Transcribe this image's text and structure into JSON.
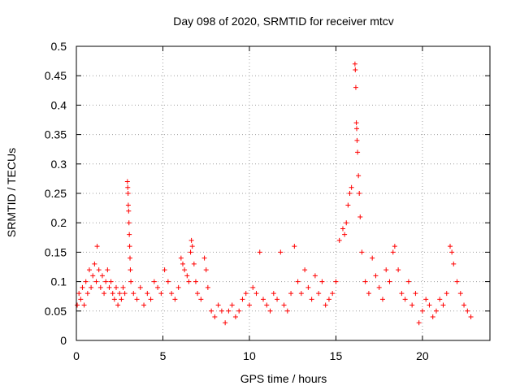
{
  "chart_data": {
    "type": "scatter",
    "title": "Day 098 of 2020, SRMTID for receiver mtcv",
    "xlabel": "GPS time / hours",
    "ylabel": "SRMTID / TECUs",
    "xlim": [
      0,
      23.9
    ],
    "ylim": [
      0,
      0.5
    ],
    "xticks": [
      0,
      5,
      10,
      15,
      20
    ],
    "xtick_labels": [
      "0",
      "5",
      "10",
      "15",
      "20"
    ],
    "yticks": [
      0,
      0.05,
      0.1,
      0.15,
      0.2,
      0.25,
      0.3,
      0.35,
      0.4,
      0.45,
      0.5
    ],
    "ytick_labels": [
      "0",
      "0.05",
      "0.1",
      "0.15",
      "0.2",
      "0.25",
      "0.3",
      "0.35",
      "0.4",
      "0.45",
      "0.5"
    ],
    "grid": true,
    "marker": "+",
    "series": [
      {
        "name": "SRMTID",
        "color": "#ff0000",
        "points": [
          [
            0.05,
            0.06
          ],
          [
            0.15,
            0.08
          ],
          [
            0.25,
            0.07
          ],
          [
            0.35,
            0.09
          ],
          [
            0.45,
            0.06
          ],
          [
            0.55,
            0.1
          ],
          [
            0.65,
            0.08
          ],
          [
            0.75,
            0.12
          ],
          [
            0.85,
            0.09
          ],
          [
            0.95,
            0.11
          ],
          [
            1.05,
            0.13
          ],
          [
            1.15,
            0.1
          ],
          [
            1.2,
            0.16
          ],
          [
            1.3,
            0.12
          ],
          [
            1.4,
            0.09
          ],
          [
            1.5,
            0.11
          ],
          [
            1.6,
            0.08
          ],
          [
            1.7,
            0.1
          ],
          [
            1.8,
            0.12
          ],
          [
            1.9,
            0.09
          ],
          [
            2.0,
            0.1
          ],
          [
            2.1,
            0.08
          ],
          [
            2.2,
            0.07
          ],
          [
            2.3,
            0.09
          ],
          [
            2.4,
            0.06
          ],
          [
            2.5,
            0.08
          ],
          [
            2.6,
            0.07
          ],
          [
            2.7,
            0.09
          ],
          [
            2.8,
            0.08
          ],
          [
            2.95,
            0.27
          ],
          [
            2.97,
            0.26
          ],
          [
            2.99,
            0.25
          ],
          [
            3.0,
            0.23
          ],
          [
            3.02,
            0.22
          ],
          [
            3.04,
            0.2
          ],
          [
            3.06,
            0.18
          ],
          [
            3.08,
            0.16
          ],
          [
            3.1,
            0.14
          ],
          [
            3.12,
            0.12
          ],
          [
            3.15,
            0.1
          ],
          [
            3.3,
            0.08
          ],
          [
            3.5,
            0.07
          ],
          [
            3.7,
            0.09
          ],
          [
            3.9,
            0.06
          ],
          [
            4.1,
            0.08
          ],
          [
            4.3,
            0.07
          ],
          [
            4.5,
            0.1
          ],
          [
            4.7,
            0.09
          ],
          [
            4.9,
            0.08
          ],
          [
            5.1,
            0.12
          ],
          [
            5.3,
            0.1
          ],
          [
            5.5,
            0.08
          ],
          [
            5.7,
            0.07
          ],
          [
            5.9,
            0.09
          ],
          [
            6.05,
            0.14
          ],
          [
            6.15,
            0.13
          ],
          [
            6.25,
            0.12
          ],
          [
            6.4,
            0.11
          ],
          [
            6.5,
            0.1
          ],
          [
            6.6,
            0.15
          ],
          [
            6.65,
            0.17
          ],
          [
            6.7,
            0.16
          ],
          [
            6.8,
            0.13
          ],
          [
            6.9,
            0.1
          ],
          [
            7.0,
            0.08
          ],
          [
            7.2,
            0.07
          ],
          [
            7.4,
            0.14
          ],
          [
            7.5,
            0.12
          ],
          [
            7.6,
            0.09
          ],
          [
            7.8,
            0.05
          ],
          [
            8.0,
            0.04
          ],
          [
            8.2,
            0.06
          ],
          [
            8.4,
            0.05
          ],
          [
            8.6,
            0.03
          ],
          [
            8.8,
            0.05
          ],
          [
            9.0,
            0.06
          ],
          [
            9.2,
            0.04
          ],
          [
            9.4,
            0.05
          ],
          [
            9.6,
            0.07
          ],
          [
            9.8,
            0.08
          ],
          [
            10.0,
            0.06
          ],
          [
            10.2,
            0.09
          ],
          [
            10.4,
            0.08
          ],
          [
            10.6,
            0.15
          ],
          [
            10.8,
            0.07
          ],
          [
            11.0,
            0.06
          ],
          [
            11.2,
            0.05
          ],
          [
            11.4,
            0.08
          ],
          [
            11.6,
            0.07
          ],
          [
            11.8,
            0.15
          ],
          [
            12.0,
            0.06
          ],
          [
            12.2,
            0.05
          ],
          [
            12.4,
            0.08
          ],
          [
            12.6,
            0.16
          ],
          [
            12.8,
            0.1
          ],
          [
            13.0,
            0.08
          ],
          [
            13.2,
            0.12
          ],
          [
            13.4,
            0.09
          ],
          [
            13.6,
            0.07
          ],
          [
            13.8,
            0.11
          ],
          [
            14.0,
            0.08
          ],
          [
            14.2,
            0.1
          ],
          [
            14.4,
            0.06
          ],
          [
            14.6,
            0.07
          ],
          [
            14.8,
            0.08
          ],
          [
            15.0,
            0.1
          ],
          [
            15.2,
            0.17
          ],
          [
            15.4,
            0.19
          ],
          [
            15.5,
            0.18
          ],
          [
            15.6,
            0.2
          ],
          [
            15.7,
            0.23
          ],
          [
            15.8,
            0.25
          ],
          [
            15.9,
            0.26
          ],
          [
            16.1,
            0.47
          ],
          [
            16.12,
            0.46
          ],
          [
            16.15,
            0.43
          ],
          [
            16.18,
            0.37
          ],
          [
            16.2,
            0.36
          ],
          [
            16.22,
            0.34
          ],
          [
            16.25,
            0.32
          ],
          [
            16.3,
            0.28
          ],
          [
            16.35,
            0.25
          ],
          [
            16.4,
            0.21
          ],
          [
            16.5,
            0.15
          ],
          [
            16.7,
            0.1
          ],
          [
            16.9,
            0.08
          ],
          [
            17.1,
            0.14
          ],
          [
            17.3,
            0.11
          ],
          [
            17.5,
            0.09
          ],
          [
            17.7,
            0.07
          ],
          [
            17.9,
            0.12
          ],
          [
            18.1,
            0.1
          ],
          [
            18.3,
            0.15
          ],
          [
            18.4,
            0.16
          ],
          [
            18.6,
            0.12
          ],
          [
            18.8,
            0.08
          ],
          [
            19.0,
            0.07
          ],
          [
            19.2,
            0.1
          ],
          [
            19.4,
            0.06
          ],
          [
            19.6,
            0.08
          ],
          [
            19.8,
            0.03
          ],
          [
            20.0,
            0.05
          ],
          [
            20.2,
            0.07
          ],
          [
            20.4,
            0.06
          ],
          [
            20.6,
            0.04
          ],
          [
            20.8,
            0.05
          ],
          [
            21.0,
            0.07
          ],
          [
            21.2,
            0.06
          ],
          [
            21.4,
            0.08
          ],
          [
            21.6,
            0.16
          ],
          [
            21.7,
            0.15
          ],
          [
            21.8,
            0.13
          ],
          [
            22.0,
            0.1
          ],
          [
            22.2,
            0.08
          ],
          [
            22.4,
            0.06
          ],
          [
            22.6,
            0.05
          ],
          [
            22.8,
            0.04
          ]
        ]
      }
    ]
  }
}
